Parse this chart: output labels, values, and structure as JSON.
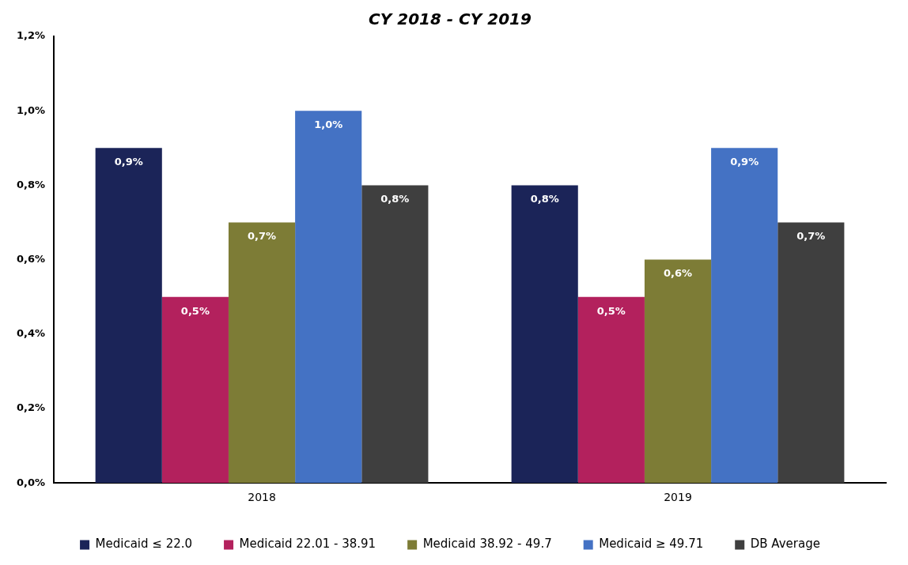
{
  "chart_data": {
    "type": "bar",
    "title": "CY 2018 - CY 2019",
    "categories": [
      "2018",
      "2019"
    ],
    "series": [
      {
        "name": "Medicaid ≤ 22.0",
        "color": "#1b2458",
        "values": [
          0.9,
          0.8
        ],
        "value_labels": [
          "0,9%",
          "0,8%"
        ]
      },
      {
        "name": "Medicaid 22.01 - 38.91",
        "color": "#b3215d",
        "values": [
          0.5,
          0.5
        ],
        "value_labels": [
          "0,5%",
          "0,5%"
        ]
      },
      {
        "name": "Medicaid 38.92 - 49.7",
        "color": "#7d7c36",
        "values": [
          0.7,
          0.6
        ],
        "value_labels": [
          "0,7%",
          "0,6%"
        ]
      },
      {
        "name": "Medicaid ≥ 49.71",
        "color": "#4472c4",
        "values": [
          1.0,
          0.9
        ],
        "value_labels": [
          "1,0%",
          "0,9%"
        ]
      },
      {
        "name": "DB Average",
        "color": "#3f3f3f",
        "values": [
          0.8,
          0.7
        ],
        "value_labels": [
          "0,8%",
          "0,7%"
        ]
      }
    ],
    "ylim": [
      0,
      1.2
    ],
    "yticks": [
      {
        "value": 0,
        "label": "0,0%"
      },
      {
        "value": 0.2,
        "label": "0,2%"
      },
      {
        "value": 0.4,
        "label": "0,4%"
      },
      {
        "value": 0.6,
        "label": "0,6%"
      },
      {
        "value": 0.8,
        "label": "0,8%"
      },
      {
        "value": 1.0,
        "label": "1,0%"
      },
      {
        "value": 1.2,
        "label": "1,2%"
      }
    ],
    "grid": false,
    "legend": "bottom"
  }
}
